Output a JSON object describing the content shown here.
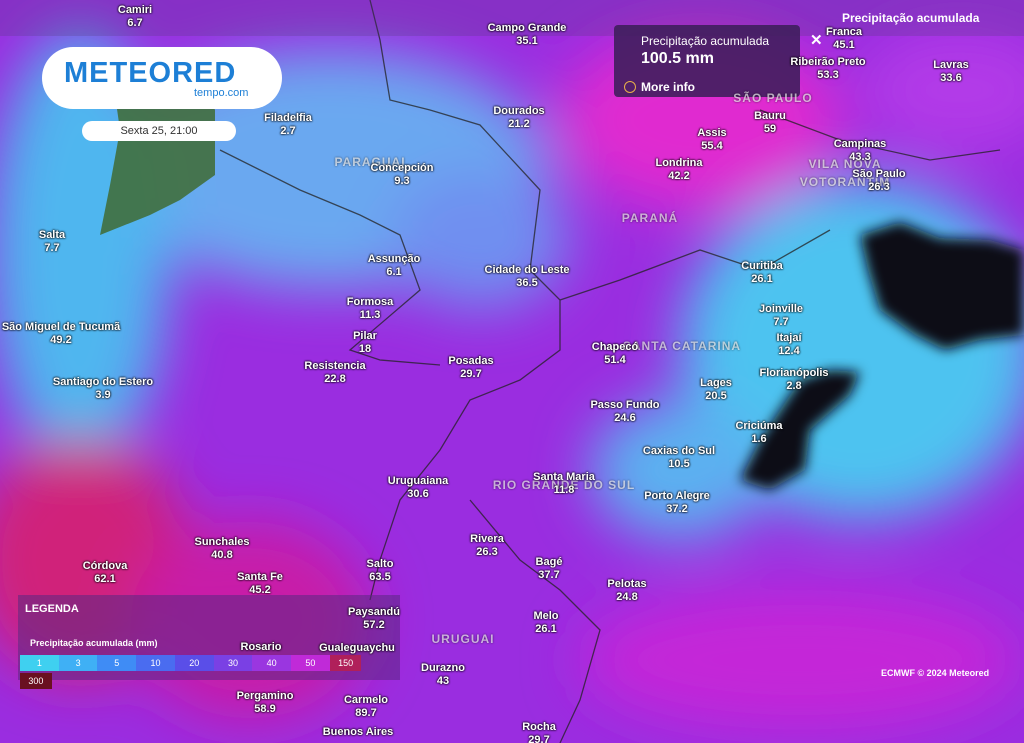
{
  "header": {
    "logo": "METEORED",
    "logo_sub": "tempo.com",
    "datetime": "Sexta 25, 21:00",
    "layer_title": "Precipitação acumulada"
  },
  "tooltip": {
    "title": "Precipitação acumulada",
    "value": "100.5 mm",
    "link": "More info"
  },
  "regions": [
    "PARAGUAI",
    "SÃO PAULO",
    "VILA NOVA",
    "VOTORANTIM",
    "PARANÁ",
    "SANTA CATARINA",
    "RIO GRANDE DO SUL",
    "URUGUAI"
  ],
  "cities": [
    {
      "name": "Camiri",
      "value": 6.7
    },
    {
      "name": "Campo Grande",
      "value": 35.1
    },
    {
      "name": "Franca",
      "value": 45.1
    },
    {
      "name": "Filadelfia",
      "value": 2.7
    },
    {
      "name": "Dourados",
      "value": 21.2
    },
    {
      "name": "Ribeirão Preto",
      "value": 53.3
    },
    {
      "name": "Lavras",
      "value": 33.6
    },
    {
      "name": "Bauru",
      "value": 59
    },
    {
      "name": "Assis",
      "value": 55.4
    },
    {
      "name": "Campinas",
      "value": 43.3
    },
    {
      "name": "São Paulo",
      "value": 26.3
    },
    {
      "name": "Londrina",
      "value": 42.2
    },
    {
      "name": "Concepción",
      "value": 9.3
    },
    {
      "name": "Salta",
      "value": 7.7
    },
    {
      "name": "Assunção",
      "value": 6.1
    },
    {
      "name": "Cidade do Leste",
      "value": 36.5
    },
    {
      "name": "Curitiba",
      "value": 26.1
    },
    {
      "name": "Formosa",
      "value": 11.3
    },
    {
      "name": "Joinville",
      "value": 7.7
    },
    {
      "name": "São Miguel de Tucumã",
      "value": 49.2
    },
    {
      "name": "Pilar",
      "value": 18
    },
    {
      "name": "Itajaí",
      "value": 12.4
    },
    {
      "name": "Chapecó",
      "value": 51.4
    },
    {
      "name": "Resistencia",
      "value": 22.8
    },
    {
      "name": "Posadas",
      "value": 29.7
    },
    {
      "name": "Florianópolis",
      "value": 2.8
    },
    {
      "name": "Santiago do Estero",
      "value": 3.9
    },
    {
      "name": "Lages",
      "value": 20.5
    },
    {
      "name": "Passo Fundo",
      "value": 24.6
    },
    {
      "name": "Criciúma",
      "value": 1.6
    },
    {
      "name": "Caxias do Sul",
      "value": 10.5
    },
    {
      "name": "Santa Maria",
      "value": 11.8
    },
    {
      "name": "Uruguaiana",
      "value": 30.6
    },
    {
      "name": "Porto Alegre",
      "value": 37.2
    },
    {
      "name": "Rivera",
      "value": 26.3
    },
    {
      "name": "Sunchales",
      "value": 40.8
    },
    {
      "name": "Bagé",
      "value": 37.7
    },
    {
      "name": "Córdova",
      "value": 62.1
    },
    {
      "name": "Salto",
      "value": 63.5
    },
    {
      "name": "Santa Fe",
      "value": 45.2
    },
    {
      "name": "Pelotas",
      "value": 24.8
    },
    {
      "name": "Paysandú",
      "value": 57.2
    },
    {
      "name": "Melo",
      "value": 26.1
    },
    {
      "name": "Rosario"
    },
    {
      "name": "Gualeguaychu"
    },
    {
      "name": "Durazno",
      "value": 43
    },
    {
      "name": "Pergamino",
      "value": 58.9
    },
    {
      "name": "Carmelo",
      "value": 89.7
    },
    {
      "name": "Buenos Aires"
    },
    {
      "name": "Rocha",
      "value": 29.7
    }
  ],
  "legend": {
    "title": "LEGENDA",
    "subtitle": "Precipitação acumulada (mm)",
    "scale": [
      1,
      3,
      5,
      10,
      20,
      30,
      40,
      50,
      150,
      300
    ]
  },
  "credit": "ECMWF © 2024 Meteored"
}
